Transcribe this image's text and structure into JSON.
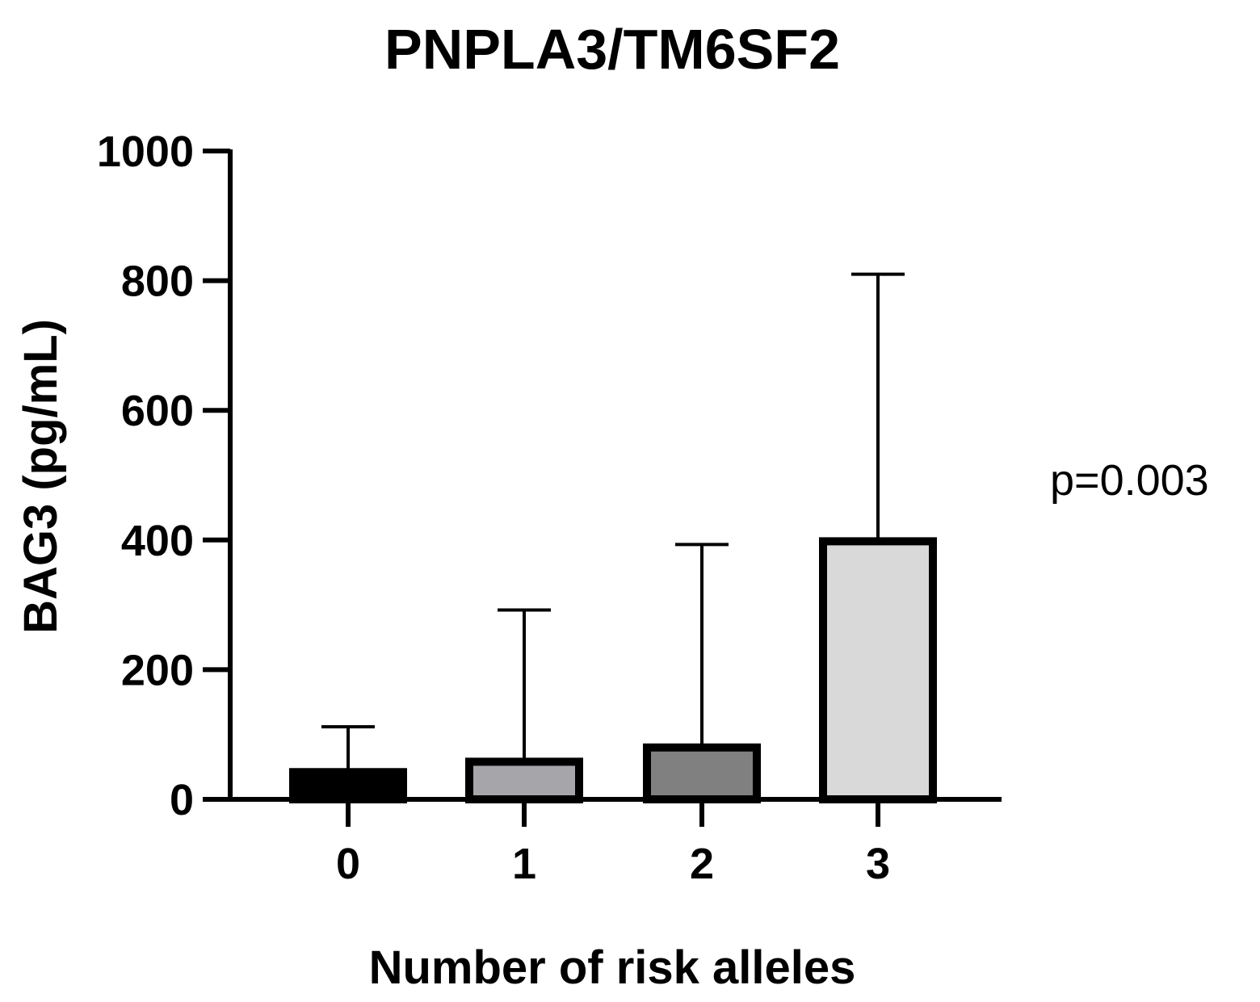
{
  "chart_data": {
    "type": "bar",
    "title": "PNPLA3/TM6SF2",
    "xlabel": "Number of risk alleles",
    "ylabel": "BAG3 (pg/mL)",
    "categories": [
      "0",
      "1",
      "2",
      "3"
    ],
    "values": [
      42,
      58,
      80,
      398
    ],
    "error_upper": [
      112,
      292,
      393,
      810
    ],
    "bar_colors": [
      "#000000",
      "#a6a6aa",
      "#808080",
      "#d9d9d9"
    ],
    "ylim": [
      0,
      1000
    ],
    "yticks": [
      0,
      200,
      400,
      600,
      800,
      1000
    ],
    "annotations": [
      "p=0.003"
    ],
    "grid": false,
    "legend": "none"
  }
}
